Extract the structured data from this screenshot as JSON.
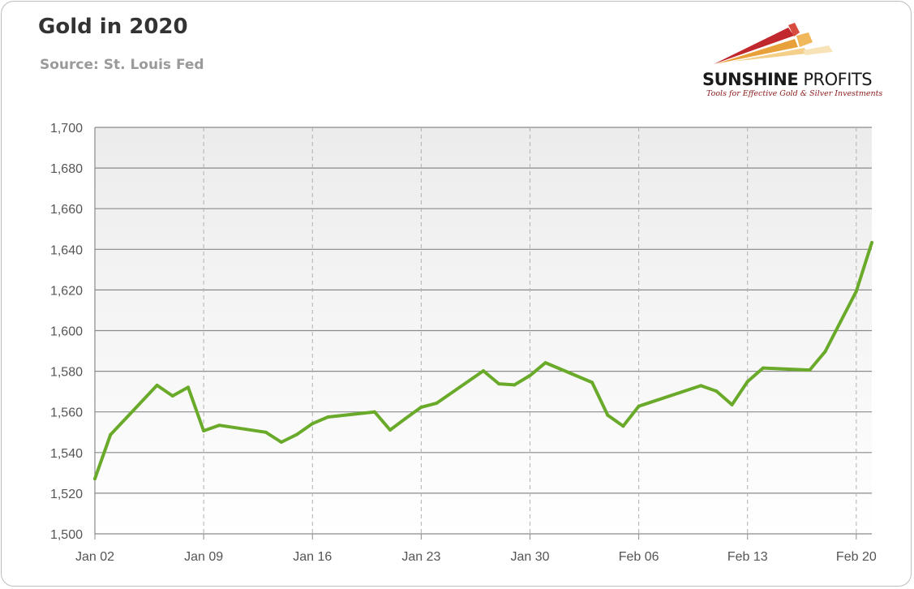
{
  "header": {
    "title": "Gold in 2020",
    "subtitle": "Source: St. Louis Fed"
  },
  "logo": {
    "name_bold": "SUNSHINE",
    "name_regular": " PROFITS",
    "tagline": "Tools for Effective Gold & Silver Investments",
    "colors": [
      "#c0282d",
      "#e8a13a",
      "#f3cf8a"
    ]
  },
  "chart_data": {
    "type": "line",
    "title": "Gold in 2020",
    "subtitle": "Source: St. Louis Fed",
    "xlabel": "",
    "ylabel": "",
    "ylim": [
      1500,
      1700
    ],
    "yticks": [
      1500,
      1520,
      1540,
      1560,
      1580,
      1600,
      1620,
      1640,
      1660,
      1680,
      1700
    ],
    "ytick_labels": [
      "1,500",
      "1,520",
      "1,540",
      "1,560",
      "1,580",
      "1,600",
      "1,620",
      "1,640",
      "1,660",
      "1,680",
      "1,700"
    ],
    "xlim": [
      "2020-01-02",
      "2020-02-21"
    ],
    "xticks": [
      "2020-01-02",
      "2020-01-09",
      "2020-01-16",
      "2020-01-23",
      "2020-01-30",
      "2020-02-06",
      "2020-02-13",
      "2020-02-20"
    ],
    "xtick_labels": [
      "Jan 02",
      "Jan 09",
      "Jan 16",
      "Jan 23",
      "Jan 30",
      "Feb 06",
      "Feb 13",
      "Feb 20"
    ],
    "grid": true,
    "line_color": "#6aaa2a",
    "series": [
      {
        "name": "",
        "x": [
          "2020-01-02",
          "2020-01-03",
          "2020-01-06",
          "2020-01-07",
          "2020-01-08",
          "2020-01-09",
          "2020-01-10",
          "2020-01-13",
          "2020-01-14",
          "2020-01-15",
          "2020-01-16",
          "2020-01-17",
          "2020-01-20",
          "2020-01-21",
          "2020-01-22",
          "2020-01-23",
          "2020-01-24",
          "2020-01-27",
          "2020-01-28",
          "2020-01-29",
          "2020-01-30",
          "2020-01-31",
          "2020-02-03",
          "2020-02-04",
          "2020-02-05",
          "2020-02-06",
          "2020-02-10",
          "2020-02-11",
          "2020-02-12",
          "2020-02-13",
          "2020-02-14",
          "2020-02-17",
          "2020-02-18",
          "2020-02-19",
          "2020-02-20",
          "2020-02-21"
        ],
        "values": [
          1527.1,
          1548.75,
          1573.1,
          1567.85,
          1572.1,
          1550.7,
          1553.4,
          1550.0,
          1545.1,
          1548.9,
          1554.2,
          1557.5,
          1560.0,
          1551.1,
          1556.8,
          1562.3,
          1564.3,
          1580.2,
          1573.8,
          1573.3,
          1577.9,
          1584.2,
          1574.5,
          1558.4,
          1553.0,
          1562.8,
          1572.9,
          1570.2,
          1563.5,
          1574.9,
          1581.6,
          1580.6,
          1589.7,
          1604.6,
          1619.3,
          1643.3
        ]
      }
    ]
  }
}
